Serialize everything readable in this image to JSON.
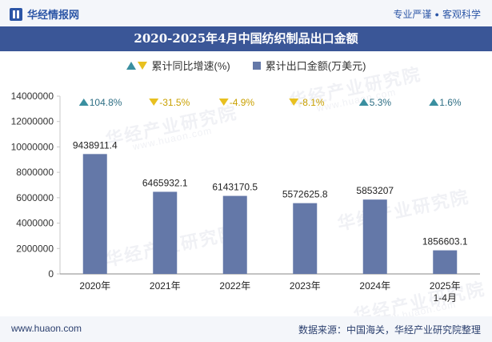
{
  "header": {
    "brand": "华经情报网",
    "tagline_left": "专业严谨",
    "tagline_right": "客观科学"
  },
  "watermark": {
    "text": "华经产业研究院",
    "url": "www.huaon.com"
  },
  "legend": {
    "growth_label": "累计同比增速(%)",
    "amount_label": "累计出口金额(万美元)"
  },
  "footer": {
    "url": "www.huaon.com",
    "source": "数据来源：中国海关，华经产业研究院整理"
  },
  "colors": {
    "bar": "#6478a8",
    "up": "#3a8fa0",
    "down": "#e8c020",
    "title_bg": "#3a5697"
  },
  "chart_data": {
    "type": "bar",
    "title": "2020-2025年4月中国纺织制品出口金额",
    "categories": [
      "2020年",
      "2021年",
      "2022年",
      "2023年",
      "2024年",
      "2025年\n1-4月"
    ],
    "series": [
      {
        "name": "累计出口金额(万美元)",
        "values": [
          9438911.4,
          6465932.1,
          6143170.5,
          5572625.8,
          5853207,
          1856603.1
        ],
        "value_labels": [
          "9438911.4",
          "6465932.1",
          "6143170.5",
          "5572625.8",
          "5853207",
          "1856603.1"
        ]
      },
      {
        "name": "累计同比增速(%)",
        "values": [
          104.8,
          -31.5,
          -4.9,
          -8.1,
          5.3,
          1.6
        ],
        "value_labels": [
          "104.8%",
          "-31.5%",
          "-4.9%",
          "-8.1%",
          "5.3%",
          "1.6%"
        ]
      }
    ],
    "ylim": [
      0,
      14000000
    ],
    "yticks": [
      0,
      2000000,
      4000000,
      6000000,
      8000000,
      10000000,
      12000000,
      14000000
    ],
    "ytick_labels": [
      "0",
      "2000000",
      "4000000",
      "6000000",
      "8000000",
      "10000000",
      "12000000",
      "14000000"
    ],
    "grid": false,
    "legend_position": "top"
  }
}
